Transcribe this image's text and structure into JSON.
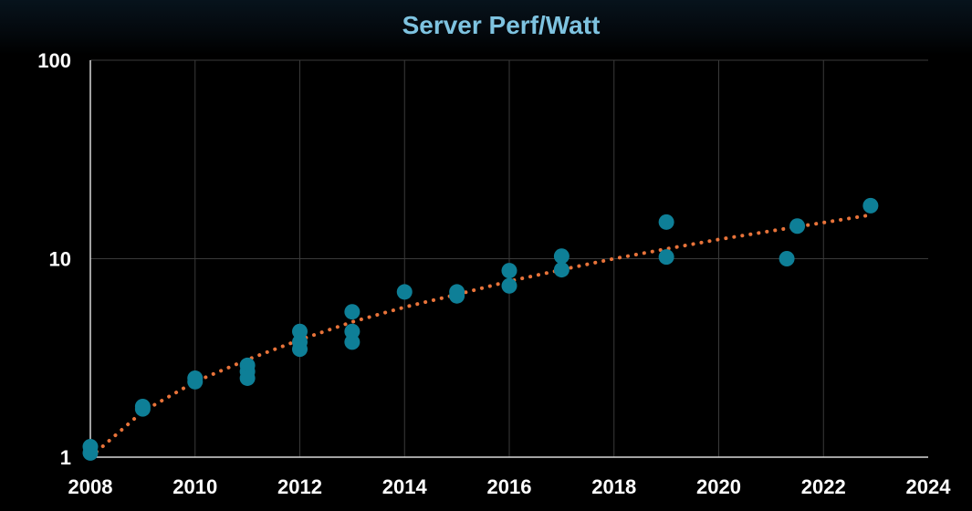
{
  "chart_data": {
    "type": "scatter",
    "title": "Server Perf/Watt",
    "xlabel": "",
    "ylabel": "",
    "xlim": [
      2008,
      2024
    ],
    "ylim": [
      1,
      100
    ],
    "y_scale": "log",
    "x_ticks": [
      "2008",
      "2010",
      "2012",
      "2014",
      "2016",
      "2018",
      "2020",
      "2022",
      "2024"
    ],
    "y_ticks": [
      {
        "value": 1,
        "label": "1"
      },
      {
        "value": 10,
        "label": "10"
      },
      {
        "value": 100,
        "label": "100"
      }
    ],
    "grid": true,
    "series": [
      {
        "type": "scatter",
        "color": "#0e7f97",
        "points": [
          {
            "x": 2008.0,
            "y": 1.13
          },
          {
            "x": 2008.0,
            "y": 1.05
          },
          {
            "x": 2009.0,
            "y": 1.8
          },
          {
            "x": 2009.0,
            "y": 1.75
          },
          {
            "x": 2010.0,
            "y": 2.5
          },
          {
            "x": 2010.0,
            "y": 2.4
          },
          {
            "x": 2011.0,
            "y": 2.9
          },
          {
            "x": 2011.0,
            "y": 2.7
          },
          {
            "x": 2011.0,
            "y": 2.5
          },
          {
            "x": 2012.0,
            "y": 4.3
          },
          {
            "x": 2012.0,
            "y": 3.8
          },
          {
            "x": 2012.0,
            "y": 3.5
          },
          {
            "x": 2013.0,
            "y": 5.4
          },
          {
            "x": 2013.0,
            "y": 4.3
          },
          {
            "x": 2013.0,
            "y": 3.8
          },
          {
            "x": 2014.0,
            "y": 6.8
          },
          {
            "x": 2015.0,
            "y": 6.8
          },
          {
            "x": 2015.0,
            "y": 6.5
          },
          {
            "x": 2016.0,
            "y": 8.7
          },
          {
            "x": 2016.0,
            "y": 7.3
          },
          {
            "x": 2017.0,
            "y": 10.3
          },
          {
            "x": 2017.0,
            "y": 8.8
          },
          {
            "x": 2019.0,
            "y": 15.3
          },
          {
            "x": 2019.0,
            "y": 10.2
          },
          {
            "x": 2021.3,
            "y": 10.0
          },
          {
            "x": 2021.5,
            "y": 14.6
          },
          {
            "x": 2022.9,
            "y": 18.5
          }
        ]
      },
      {
        "type": "trendline",
        "style": "dotted",
        "color": "#e8733a",
        "points": [
          {
            "x": 2008.0,
            "y": 1.0
          },
          {
            "x": 2009.0,
            "y": 1.7
          },
          {
            "x": 2010.0,
            "y": 2.4
          },
          {
            "x": 2011.0,
            "y": 3.1
          },
          {
            "x": 2012.0,
            "y": 3.9
          },
          {
            "x": 2013.0,
            "y": 4.8
          },
          {
            "x": 2014.0,
            "y": 5.7
          },
          {
            "x": 2015.0,
            "y": 6.6
          },
          {
            "x": 2016.0,
            "y": 7.7
          },
          {
            "x": 2017.0,
            "y": 8.8
          },
          {
            "x": 2018.0,
            "y": 10.0
          },
          {
            "x": 2019.0,
            "y": 11.2
          },
          {
            "x": 2020.0,
            "y": 12.5
          },
          {
            "x": 2021.0,
            "y": 13.8
          },
          {
            "x": 2022.0,
            "y": 15.2
          },
          {
            "x": 2022.9,
            "y": 16.6
          }
        ]
      }
    ]
  }
}
